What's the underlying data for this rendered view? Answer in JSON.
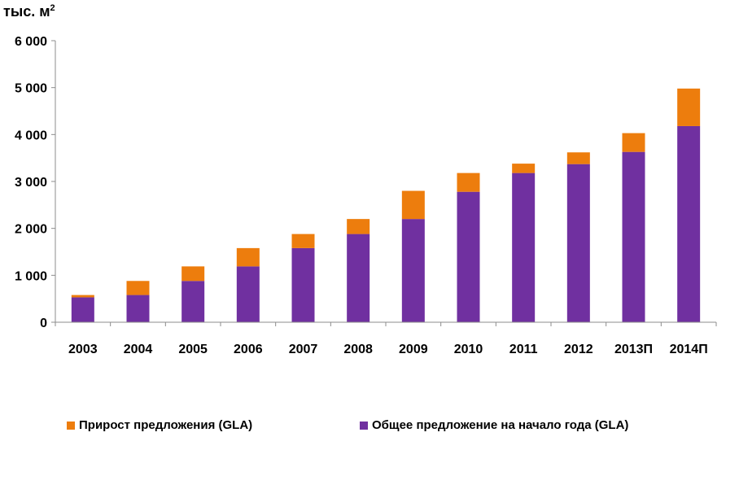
{
  "chart_data": {
    "type": "bar",
    "stacked": true,
    "unit_label": "тыс. м",
    "unit_superscript": "2",
    "categories": [
      "2003",
      "2004",
      "2005",
      "2006",
      "2007",
      "2008",
      "2009",
      "2010",
      "2011",
      "2012",
      "2013П",
      "2014П"
    ],
    "series": [
      {
        "name": "Общее предложение на начало года (GLA)",
        "color": "#7030a0",
        "values": [
          530,
          580,
          880,
          1190,
          1580,
          1880,
          2200,
          2780,
          3180,
          3370,
          3630,
          4180
        ]
      },
      {
        "name": "Прирост предложения (GLA)",
        "color": "#ed7d0d",
        "values": [
          50,
          300,
          310,
          390,
          300,
          320,
          600,
          400,
          200,
          250,
          400,
          800
        ]
      }
    ],
    "ylim": [
      0,
      6000
    ],
    "yticks": [
      0,
      1000,
      2000,
      3000,
      4000,
      5000,
      6000
    ],
    "ytick_labels": [
      "0",
      "1 000",
      "2 000",
      "3 000",
      "4 000",
      "5 000",
      "6 000"
    ],
    "legend_position": "bottom",
    "grid": false
  }
}
